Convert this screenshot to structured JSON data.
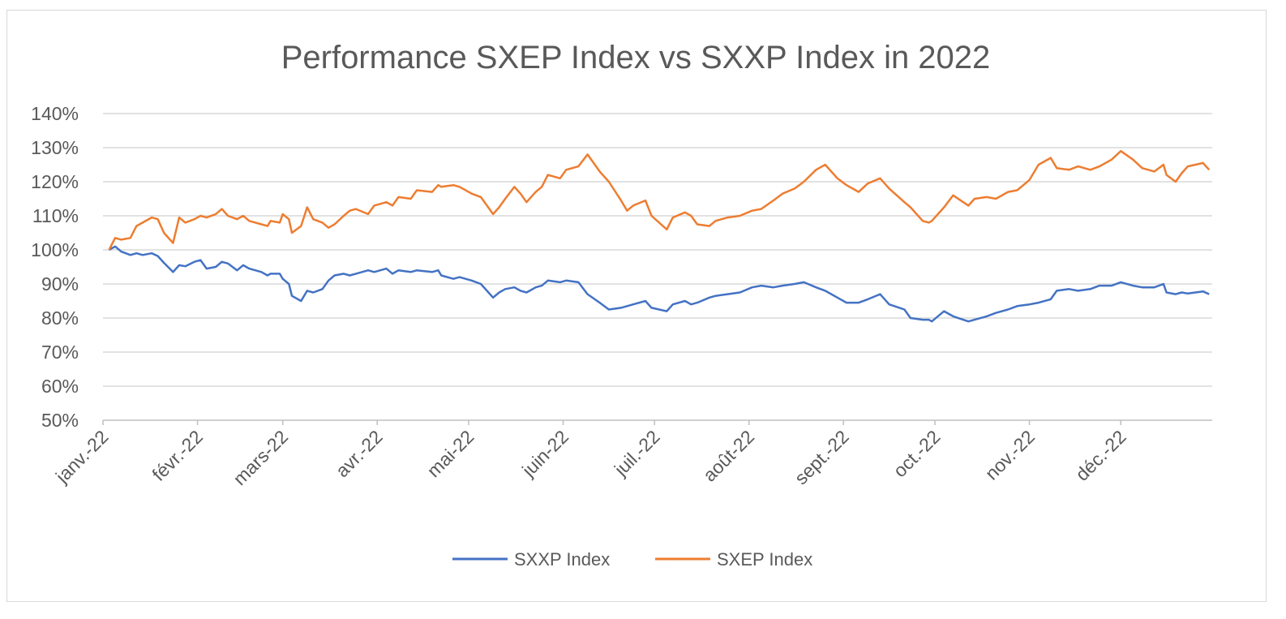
{
  "chart_data": {
    "type": "line",
    "title": "Performance SXEP Index vs SXXP Index in 2022",
    "xlabel": "",
    "ylabel": "",
    "ylim": [
      0.5,
      1.4
    ],
    "y_ticks": [
      "50%",
      "60%",
      "70%",
      "80%",
      "90%",
      "100%",
      "110%",
      "120%",
      "130%",
      "140%"
    ],
    "x_range": [
      "2022-01-03",
      "2022-12-30"
    ],
    "x_ticks": [
      {
        "date": "2022-01-01",
        "label": "janv.-22"
      },
      {
        "date": "2022-02-01",
        "label": "févr.-22"
      },
      {
        "date": "2022-03-01",
        "label": "mars-22"
      },
      {
        "date": "2022-04-01",
        "label": "avr.-22"
      },
      {
        "date": "2022-05-01",
        "label": "mai-22"
      },
      {
        "date": "2022-06-01",
        "label": "juin-22"
      },
      {
        "date": "2022-07-01",
        "label": "juil.-22"
      },
      {
        "date": "2022-08-01",
        "label": "août-22"
      },
      {
        "date": "2022-09-01",
        "label": "sept.-22"
      },
      {
        "date": "2022-10-01",
        "label": "oct.-22"
      },
      {
        "date": "2022-11-01",
        "label": "nov.-22"
      },
      {
        "date": "2022-12-01",
        "label": "déc.-22"
      }
    ],
    "grid": true,
    "legend_position": "bottom",
    "series": [
      {
        "name": "SXXP Index",
        "color": "#4472c4",
        "points": [
          [
            "2022-01-03",
            1.0
          ],
          [
            "2022-01-05",
            1.01
          ],
          [
            "2022-01-07",
            0.995
          ],
          [
            "2022-01-10",
            0.985
          ],
          [
            "2022-01-12",
            0.99
          ],
          [
            "2022-01-14",
            0.985
          ],
          [
            "2022-01-17",
            0.99
          ],
          [
            "2022-01-19",
            0.982
          ],
          [
            "2022-01-21",
            0.962
          ],
          [
            "2022-01-24",
            0.935
          ],
          [
            "2022-01-26",
            0.955
          ],
          [
            "2022-01-28",
            0.952
          ],
          [
            "2022-01-31",
            0.965
          ],
          [
            "2022-02-02",
            0.97
          ],
          [
            "2022-02-04",
            0.945
          ],
          [
            "2022-02-07",
            0.95
          ],
          [
            "2022-02-09",
            0.965
          ],
          [
            "2022-02-11",
            0.96
          ],
          [
            "2022-02-14",
            0.94
          ],
          [
            "2022-02-16",
            0.955
          ],
          [
            "2022-02-18",
            0.945
          ],
          [
            "2022-02-22",
            0.935
          ],
          [
            "2022-02-24",
            0.925
          ],
          [
            "2022-02-25",
            0.93
          ],
          [
            "2022-02-28",
            0.93
          ],
          [
            "2022-03-01",
            0.915
          ],
          [
            "2022-03-03",
            0.9
          ],
          [
            "2022-03-04",
            0.865
          ],
          [
            "2022-03-07",
            0.85
          ],
          [
            "2022-03-09",
            0.88
          ],
          [
            "2022-03-11",
            0.875
          ],
          [
            "2022-03-14",
            0.885
          ],
          [
            "2022-03-16",
            0.91
          ],
          [
            "2022-03-18",
            0.925
          ],
          [
            "2022-03-21",
            0.93
          ],
          [
            "2022-03-23",
            0.925
          ],
          [
            "2022-03-25",
            0.93
          ],
          [
            "2022-03-29",
            0.94
          ],
          [
            "2022-03-31",
            0.935
          ],
          [
            "2022-04-04",
            0.945
          ],
          [
            "2022-04-06",
            0.93
          ],
          [
            "2022-04-08",
            0.94
          ],
          [
            "2022-04-12",
            0.935
          ],
          [
            "2022-04-14",
            0.94
          ],
          [
            "2022-04-19",
            0.935
          ],
          [
            "2022-04-21",
            0.94
          ],
          [
            "2022-04-22",
            0.925
          ],
          [
            "2022-04-26",
            0.915
          ],
          [
            "2022-04-28",
            0.92
          ],
          [
            "2022-05-02",
            0.91
          ],
          [
            "2022-05-05",
            0.9
          ],
          [
            "2022-05-09",
            0.86
          ],
          [
            "2022-05-11",
            0.875
          ],
          [
            "2022-05-13",
            0.885
          ],
          [
            "2022-05-16",
            0.89
          ],
          [
            "2022-05-18",
            0.88
          ],
          [
            "2022-05-20",
            0.875
          ],
          [
            "2022-05-23",
            0.89
          ],
          [
            "2022-05-25",
            0.895
          ],
          [
            "2022-05-27",
            0.91
          ],
          [
            "2022-05-31",
            0.905
          ],
          [
            "2022-06-02",
            0.91
          ],
          [
            "2022-06-06",
            0.905
          ],
          [
            "2022-06-09",
            0.87
          ],
          [
            "2022-06-13",
            0.845
          ],
          [
            "2022-06-16",
            0.825
          ],
          [
            "2022-06-20",
            0.83
          ],
          [
            "2022-06-22",
            0.835
          ],
          [
            "2022-06-24",
            0.84
          ],
          [
            "2022-06-28",
            0.85
          ],
          [
            "2022-06-30",
            0.83
          ],
          [
            "2022-07-05",
            0.82
          ],
          [
            "2022-07-07",
            0.84
          ],
          [
            "2022-07-11",
            0.85
          ],
          [
            "2022-07-13",
            0.84
          ],
          [
            "2022-07-15",
            0.845
          ],
          [
            "2022-07-19",
            0.86
          ],
          [
            "2022-07-21",
            0.865
          ],
          [
            "2022-07-25",
            0.87
          ],
          [
            "2022-07-29",
            0.875
          ],
          [
            "2022-08-02",
            0.89
          ],
          [
            "2022-08-05",
            0.895
          ],
          [
            "2022-08-09",
            0.89
          ],
          [
            "2022-08-12",
            0.895
          ],
          [
            "2022-08-16",
            0.9
          ],
          [
            "2022-08-19",
            0.905
          ],
          [
            "2022-08-23",
            0.89
          ],
          [
            "2022-08-26",
            0.88
          ],
          [
            "2022-08-30",
            0.86
          ],
          [
            "2022-09-02",
            0.845
          ],
          [
            "2022-09-06",
            0.845
          ],
          [
            "2022-09-09",
            0.855
          ],
          [
            "2022-09-13",
            0.87
          ],
          [
            "2022-09-16",
            0.84
          ],
          [
            "2022-09-21",
            0.825
          ],
          [
            "2022-09-23",
            0.8
          ],
          [
            "2022-09-27",
            0.795
          ],
          [
            "2022-09-29",
            0.795
          ],
          [
            "2022-09-30",
            0.79
          ],
          [
            "2022-10-04",
            0.82
          ],
          [
            "2022-10-07",
            0.805
          ],
          [
            "2022-10-12",
            0.79
          ],
          [
            "2022-10-14",
            0.795
          ],
          [
            "2022-10-18",
            0.805
          ],
          [
            "2022-10-21",
            0.815
          ],
          [
            "2022-10-25",
            0.825
          ],
          [
            "2022-10-28",
            0.835
          ],
          [
            "2022-11-01",
            0.84
          ],
          [
            "2022-11-04",
            0.845
          ],
          [
            "2022-11-08",
            0.855
          ],
          [
            "2022-11-10",
            0.88
          ],
          [
            "2022-11-14",
            0.885
          ],
          [
            "2022-11-17",
            0.88
          ],
          [
            "2022-11-21",
            0.885
          ],
          [
            "2022-11-24",
            0.895
          ],
          [
            "2022-11-28",
            0.895
          ],
          [
            "2022-12-01",
            0.905
          ],
          [
            "2022-12-05",
            0.895
          ],
          [
            "2022-12-08",
            0.89
          ],
          [
            "2022-12-12",
            0.89
          ],
          [
            "2022-12-15",
            0.9
          ],
          [
            "2022-12-16",
            0.875
          ],
          [
            "2022-12-19",
            0.87
          ],
          [
            "2022-12-21",
            0.875
          ],
          [
            "2022-12-23",
            0.872
          ],
          [
            "2022-12-28",
            0.878
          ],
          [
            "2022-12-30",
            0.87
          ]
        ]
      },
      {
        "name": "SXEP Index",
        "color": "#ed7d31",
        "points": [
          [
            "2022-01-03",
            1.0
          ],
          [
            "2022-01-05",
            1.035
          ],
          [
            "2022-01-07",
            1.03
          ],
          [
            "2022-01-10",
            1.035
          ],
          [
            "2022-01-12",
            1.07
          ],
          [
            "2022-01-14",
            1.08
          ],
          [
            "2022-01-17",
            1.095
          ],
          [
            "2022-01-19",
            1.09
          ],
          [
            "2022-01-21",
            1.05
          ],
          [
            "2022-01-24",
            1.02
          ],
          [
            "2022-01-26",
            1.095
          ],
          [
            "2022-01-28",
            1.08
          ],
          [
            "2022-01-31",
            1.09
          ],
          [
            "2022-02-02",
            1.1
          ],
          [
            "2022-02-04",
            1.095
          ],
          [
            "2022-02-07",
            1.105
          ],
          [
            "2022-02-09",
            1.12
          ],
          [
            "2022-02-11",
            1.1
          ],
          [
            "2022-02-14",
            1.09
          ],
          [
            "2022-02-16",
            1.1
          ],
          [
            "2022-02-18",
            1.085
          ],
          [
            "2022-02-22",
            1.075
          ],
          [
            "2022-02-24",
            1.07
          ],
          [
            "2022-02-25",
            1.085
          ],
          [
            "2022-02-28",
            1.08
          ],
          [
            "2022-03-01",
            1.105
          ],
          [
            "2022-03-03",
            1.09
          ],
          [
            "2022-03-04",
            1.05
          ],
          [
            "2022-03-07",
            1.07
          ],
          [
            "2022-03-09",
            1.125
          ],
          [
            "2022-03-11",
            1.09
          ],
          [
            "2022-03-14",
            1.08
          ],
          [
            "2022-03-16",
            1.065
          ],
          [
            "2022-03-18",
            1.075
          ],
          [
            "2022-03-21",
            1.1
          ],
          [
            "2022-03-23",
            1.115
          ],
          [
            "2022-03-25",
            1.12
          ],
          [
            "2022-03-29",
            1.105
          ],
          [
            "2022-03-31",
            1.13
          ],
          [
            "2022-04-04",
            1.14
          ],
          [
            "2022-04-06",
            1.13
          ],
          [
            "2022-04-08",
            1.155
          ],
          [
            "2022-04-12",
            1.15
          ],
          [
            "2022-04-14",
            1.175
          ],
          [
            "2022-04-19",
            1.17
          ],
          [
            "2022-04-21",
            1.19
          ],
          [
            "2022-04-22",
            1.185
          ],
          [
            "2022-04-26",
            1.19
          ],
          [
            "2022-04-28",
            1.185
          ],
          [
            "2022-05-02",
            1.165
          ],
          [
            "2022-05-05",
            1.155
          ],
          [
            "2022-05-09",
            1.105
          ],
          [
            "2022-05-11",
            1.125
          ],
          [
            "2022-05-13",
            1.15
          ],
          [
            "2022-05-16",
            1.185
          ],
          [
            "2022-05-18",
            1.165
          ],
          [
            "2022-05-20",
            1.14
          ],
          [
            "2022-05-23",
            1.17
          ],
          [
            "2022-05-25",
            1.185
          ],
          [
            "2022-05-27",
            1.22
          ],
          [
            "2022-05-31",
            1.21
          ],
          [
            "2022-06-02",
            1.235
          ],
          [
            "2022-06-06",
            1.245
          ],
          [
            "2022-06-09",
            1.28
          ],
          [
            "2022-06-13",
            1.23
          ],
          [
            "2022-06-16",
            1.2
          ],
          [
            "2022-06-20",
            1.145
          ],
          [
            "2022-06-22",
            1.115
          ],
          [
            "2022-06-24",
            1.13
          ],
          [
            "2022-06-28",
            1.145
          ],
          [
            "2022-06-30",
            1.1
          ],
          [
            "2022-07-05",
            1.06
          ],
          [
            "2022-07-07",
            1.095
          ],
          [
            "2022-07-11",
            1.11
          ],
          [
            "2022-07-13",
            1.1
          ],
          [
            "2022-07-15",
            1.075
          ],
          [
            "2022-07-19",
            1.07
          ],
          [
            "2022-07-21",
            1.085
          ],
          [
            "2022-07-25",
            1.095
          ],
          [
            "2022-07-29",
            1.1
          ],
          [
            "2022-08-02",
            1.115
          ],
          [
            "2022-08-05",
            1.12
          ],
          [
            "2022-08-09",
            1.145
          ],
          [
            "2022-08-12",
            1.165
          ],
          [
            "2022-08-16",
            1.18
          ],
          [
            "2022-08-19",
            1.2
          ],
          [
            "2022-08-23",
            1.235
          ],
          [
            "2022-08-26",
            1.25
          ],
          [
            "2022-08-30",
            1.21
          ],
          [
            "2022-09-02",
            1.19
          ],
          [
            "2022-09-06",
            1.17
          ],
          [
            "2022-09-09",
            1.195
          ],
          [
            "2022-09-13",
            1.21
          ],
          [
            "2022-09-16",
            1.18
          ],
          [
            "2022-09-21",
            1.14
          ],
          [
            "2022-09-23",
            1.125
          ],
          [
            "2022-09-27",
            1.085
          ],
          [
            "2022-09-29",
            1.08
          ],
          [
            "2022-09-30",
            1.085
          ],
          [
            "2022-10-04",
            1.125
          ],
          [
            "2022-10-07",
            1.16
          ],
          [
            "2022-10-12",
            1.13
          ],
          [
            "2022-10-14",
            1.15
          ],
          [
            "2022-10-18",
            1.155
          ],
          [
            "2022-10-21",
            1.15
          ],
          [
            "2022-10-25",
            1.17
          ],
          [
            "2022-10-28",
            1.175
          ],
          [
            "2022-11-01",
            1.205
          ],
          [
            "2022-11-04",
            1.25
          ],
          [
            "2022-11-08",
            1.27
          ],
          [
            "2022-11-10",
            1.24
          ],
          [
            "2022-11-14",
            1.235
          ],
          [
            "2022-11-17",
            1.245
          ],
          [
            "2022-11-21",
            1.235
          ],
          [
            "2022-11-24",
            1.245
          ],
          [
            "2022-11-28",
            1.265
          ],
          [
            "2022-12-01",
            1.29
          ],
          [
            "2022-12-05",
            1.265
          ],
          [
            "2022-12-08",
            1.24
          ],
          [
            "2022-12-12",
            1.23
          ],
          [
            "2022-12-15",
            1.25
          ],
          [
            "2022-12-16",
            1.22
          ],
          [
            "2022-12-19",
            1.2
          ],
          [
            "2022-12-21",
            1.225
          ],
          [
            "2022-12-23",
            1.245
          ],
          [
            "2022-12-28",
            1.255
          ],
          [
            "2022-12-30",
            1.235
          ]
        ]
      }
    ]
  }
}
